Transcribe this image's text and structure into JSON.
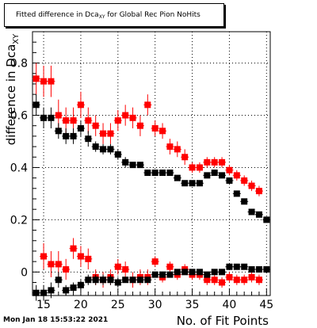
{
  "chart_data": {
    "type": "scatter",
    "title_prefix": "Fitted difference in Dca",
    "title_sub": "XY",
    "title_suffix": " for Global Rec Pion NoHits",
    "xlabel": "No. of Fit Points",
    "ylabel_main": "difference in Dca",
    "ylabel_sub": "XY",
    "xlim": [
      13.5,
      45.5
    ],
    "ylim": [
      -0.09,
      0.92
    ],
    "xticks": [
      15,
      20,
      25,
      30,
      35,
      40,
      45
    ],
    "yticks": [
      0,
      0.2,
      0.4,
      0.6,
      0.8
    ],
    "ytick_labels": [
      "0",
      "0.2",
      "0.4",
      "0.6",
      "0.8"
    ],
    "grid": true,
    "series": [
      {
        "color": "#ff0000",
        "x": [
          14,
          15,
          16,
          17,
          18,
          19,
          20,
          21,
          22,
          23,
          24,
          25,
          26,
          27,
          28,
          29,
          30,
          31,
          32,
          33,
          34,
          35,
          36,
          37,
          38,
          39,
          40,
          41,
          42,
          43,
          44
        ],
        "y": [
          0.74,
          0.73,
          0.73,
          0.6,
          0.58,
          0.58,
          0.64,
          0.58,
          0.56,
          0.53,
          0.53,
          0.58,
          0.6,
          0.59,
          0.56,
          0.64,
          0.55,
          0.54,
          0.48,
          0.47,
          0.44,
          0.4,
          0.4,
          0.42,
          0.42,
          0.42,
          0.39,
          0.37,
          0.35,
          0.33,
          0.31
        ],
        "err": [
          0.06,
          0.06,
          0.06,
          0.06,
          0.05,
          0.05,
          0.05,
          0.05,
          0.04,
          0.04,
          0.04,
          0.04,
          0.04,
          0.04,
          0.04,
          0.04,
          0.03,
          0.03,
          0.03,
          0.03,
          0.03,
          0.02,
          0.02,
          0.02,
          0.02,
          0.02,
          0.02,
          0.02,
          0.02,
          0.02,
          0.02
        ]
      },
      {
        "color": "#000000",
        "x": [
          14,
          15,
          16,
          17,
          18,
          19,
          20,
          21,
          22,
          23,
          24,
          25,
          26,
          27,
          28,
          29,
          30,
          31,
          32,
          33,
          34,
          35,
          36,
          37,
          38,
          39,
          40,
          41,
          42,
          43,
          44,
          45
        ],
        "y": [
          0.64,
          0.59,
          0.59,
          0.54,
          0.52,
          0.52,
          0.55,
          0.51,
          0.48,
          0.47,
          0.47,
          0.45,
          0.42,
          0.41,
          0.41,
          0.38,
          0.38,
          0.38,
          0.38,
          0.36,
          0.34,
          0.34,
          0.34,
          0.37,
          0.38,
          0.37,
          0.35,
          0.3,
          0.27,
          0.23,
          0.22,
          0.2
        ],
        "err": [
          0.04,
          0.04,
          0.04,
          0.03,
          0.03,
          0.03,
          0.03,
          0.03,
          0.02,
          0.02,
          0.02,
          0.02,
          0.02,
          0.01,
          0.01,
          0.01,
          0.01,
          0.01,
          0.01,
          0.01,
          0.01,
          0.01,
          0.01,
          0.01,
          0.01,
          0.01,
          0.01,
          0.01,
          0.01,
          0.01,
          0.01,
          0.01
        ]
      },
      {
        "color": "#ff0000",
        "x": [
          15,
          16,
          17,
          18,
          19,
          20,
          21,
          22,
          23,
          24,
          25,
          26,
          27,
          28,
          29,
          30,
          31,
          32,
          33,
          34,
          35,
          36,
          37,
          38,
          39,
          40,
          41,
          42,
          43,
          44
        ],
        "y": [
          0.06,
          0.03,
          0.03,
          0.01,
          0.09,
          0.06,
          0.05,
          -0.02,
          -0.03,
          -0.02,
          0.02,
          0.01,
          -0.03,
          -0.02,
          -0.02,
          0.04,
          -0.02,
          0.02,
          -0.01,
          0.01,
          -0.01,
          -0.01,
          -0.03,
          -0.03,
          -0.04,
          -0.02,
          -0.03,
          -0.03,
          -0.02,
          -0.03
        ],
        "err": [
          0.05,
          0.05,
          0.05,
          0.04,
          0.04,
          0.04,
          0.04,
          0.03,
          0.03,
          0.03,
          0.03,
          0.03,
          0.03,
          0.03,
          0.03,
          0.02,
          0.02,
          0.02,
          0.02,
          0.02,
          0.02,
          0.02,
          0.02,
          0.02,
          0.02,
          0.02,
          0.02,
          0.02,
          0.02,
          0.02
        ]
      },
      {
        "color": "#000000",
        "x": [
          14,
          15,
          16,
          17,
          18,
          19,
          20,
          21,
          22,
          23,
          24,
          25,
          26,
          27,
          28,
          29,
          30,
          31,
          32,
          33,
          34,
          35,
          36,
          37,
          38,
          39,
          40,
          41,
          42,
          43,
          44,
          45
        ],
        "y": [
          -0.08,
          -0.08,
          -0.07,
          -0.03,
          -0.07,
          -0.06,
          -0.05,
          -0.03,
          -0.03,
          -0.03,
          -0.03,
          -0.04,
          -0.03,
          -0.03,
          -0.03,
          -0.03,
          -0.01,
          -0.01,
          -0.01,
          0.0,
          0.0,
          0.0,
          0.0,
          -0.01,
          0.0,
          0.0,
          0.02,
          0.02,
          0.02,
          0.01,
          0.01,
          0.01
        ],
        "err": [
          0.03,
          0.03,
          0.03,
          0.03,
          0.02,
          0.02,
          0.02,
          0.02,
          0.02,
          0.02,
          0.02,
          0.02,
          0.01,
          0.01,
          0.01,
          0.01,
          0.01,
          0.01,
          0.01,
          0.01,
          0.01,
          0.01,
          0.01,
          0.01,
          0.01,
          0.01,
          0.01,
          0.01,
          0.01,
          0.01,
          0.01,
          0.01
        ]
      }
    ]
  },
  "footer": {
    "timestamp": "Mon Jan 18 15:53:22 2021"
  }
}
